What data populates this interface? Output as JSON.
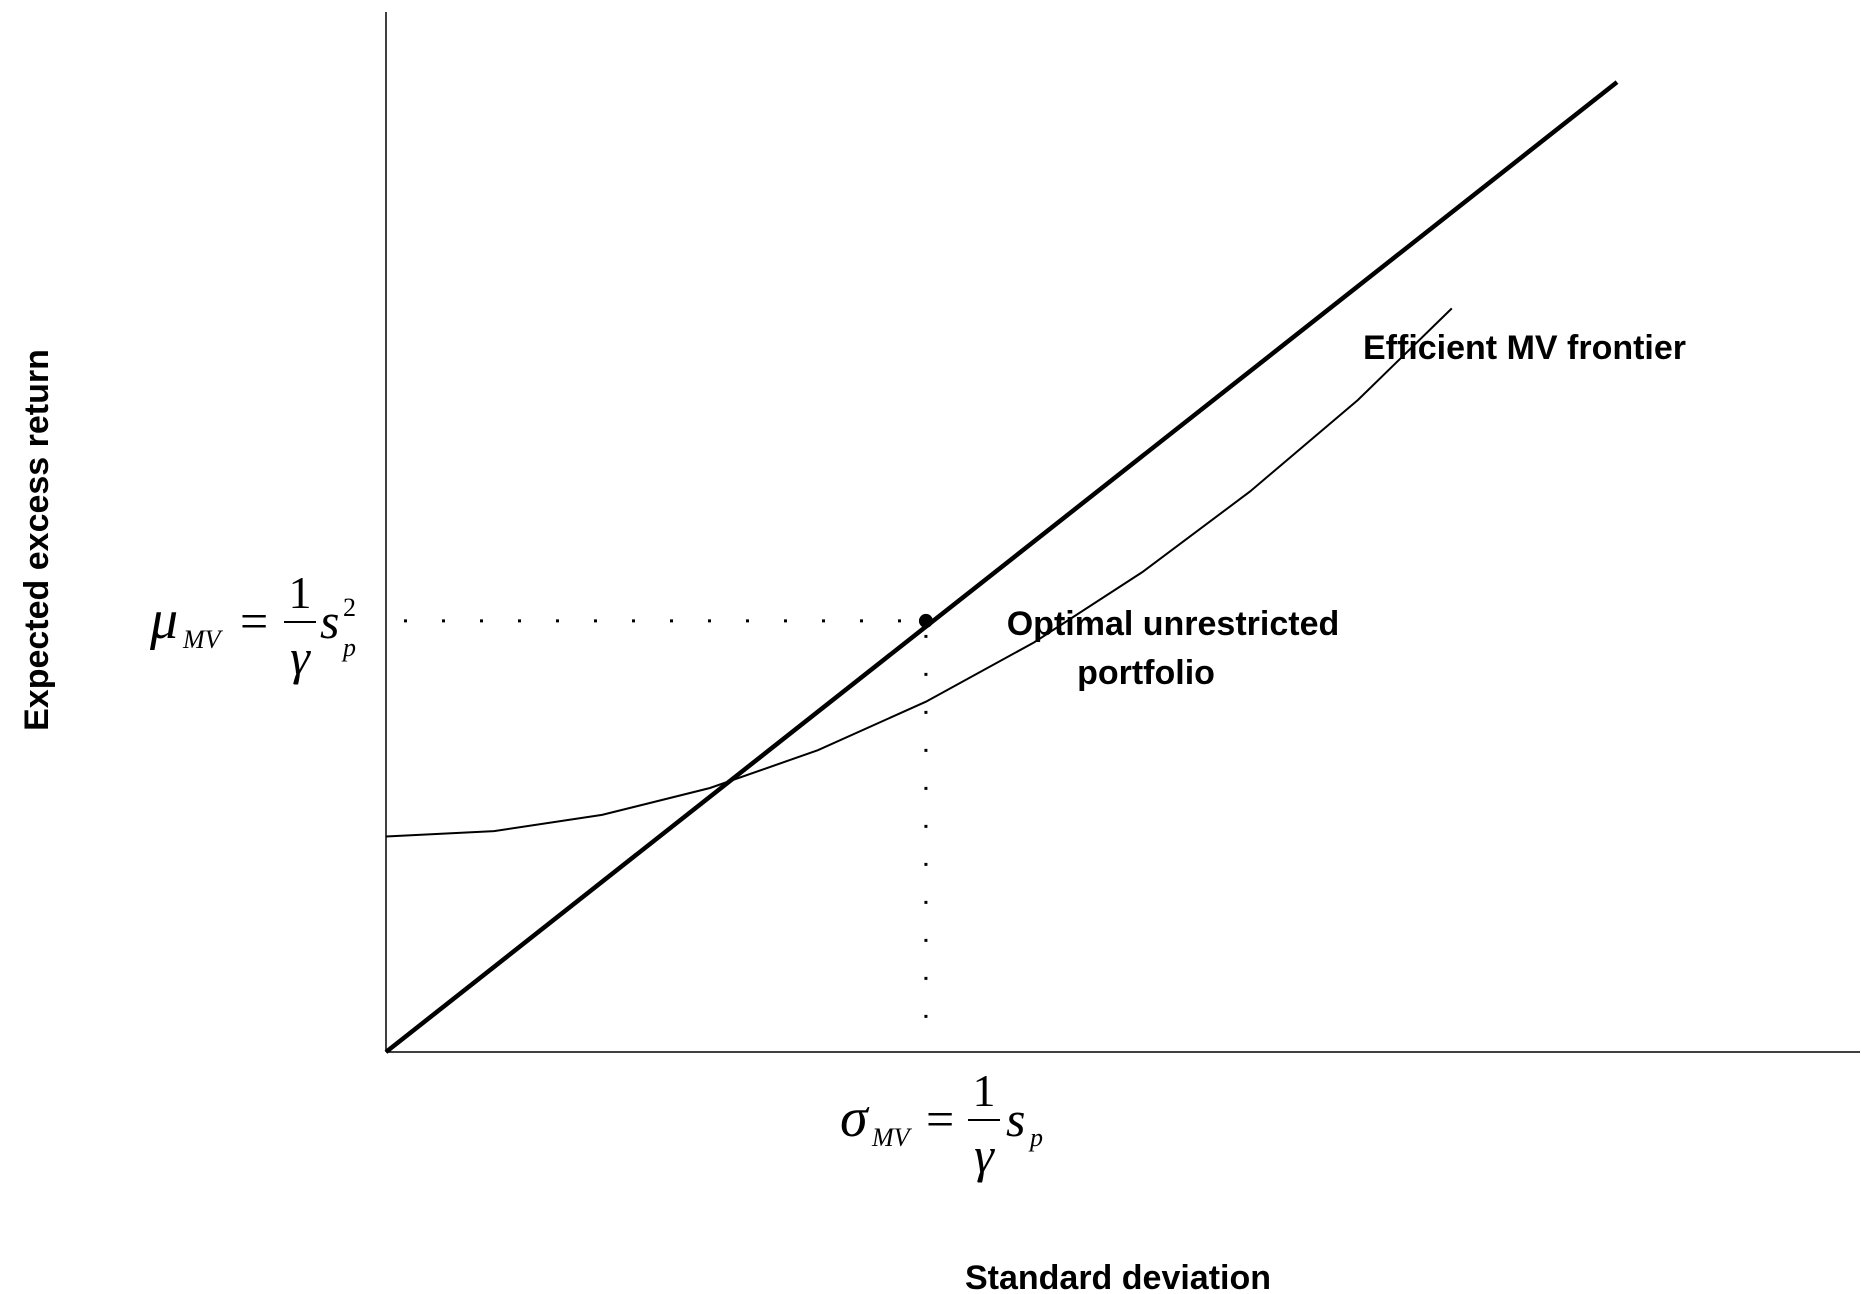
{
  "chart_data": {
    "type": "line",
    "xlabel": "Standard deviation",
    "ylabel": "Expected excess return",
    "xlim": [
      0,
      2.73
    ],
    "ylim": [
      0,
      1.93
    ],
    "grid": false,
    "series": [
      {
        "name": "Efficient MV frontier",
        "style": "thick",
        "x": [
          0,
          2.28
        ],
        "y": [
          0,
          1.8
        ]
      },
      {
        "style": "thin",
        "x": [
          0,
          0.2,
          0.4,
          0.6,
          0.8,
          1.0,
          1.2,
          1.4,
          1.6,
          1.8,
          1.974
        ],
        "y": [
          0.4,
          0.41,
          0.44,
          0.49,
          0.56,
          0.65,
          0.76,
          0.89,
          1.04,
          1.21,
          1.38
        ]
      }
    ],
    "point": {
      "x": 1.0,
      "y": 0.8,
      "label_line1": "Optimal unrestricted",
      "label_line2": "portfolio"
    },
    "annotations": {
      "y_marker": {
        "lhs_symbol": "μ",
        "lhs_subscript": "MV",
        "equals": "=",
        "numerator": "1",
        "denominator": "γ",
        "rhs_symbol": "s",
        "rhs_subscript": "p",
        "rhs_superscript": "2"
      },
      "x_marker": {
        "lhs_symbol": "σ",
        "lhs_subscript": "MV",
        "equals": "=",
        "numerator": "1",
        "denominator": "γ",
        "rhs_symbol": "s",
        "rhs_subscript": "p"
      }
    },
    "colors": {
      "line": "#000000",
      "background": "#ffffff"
    }
  }
}
